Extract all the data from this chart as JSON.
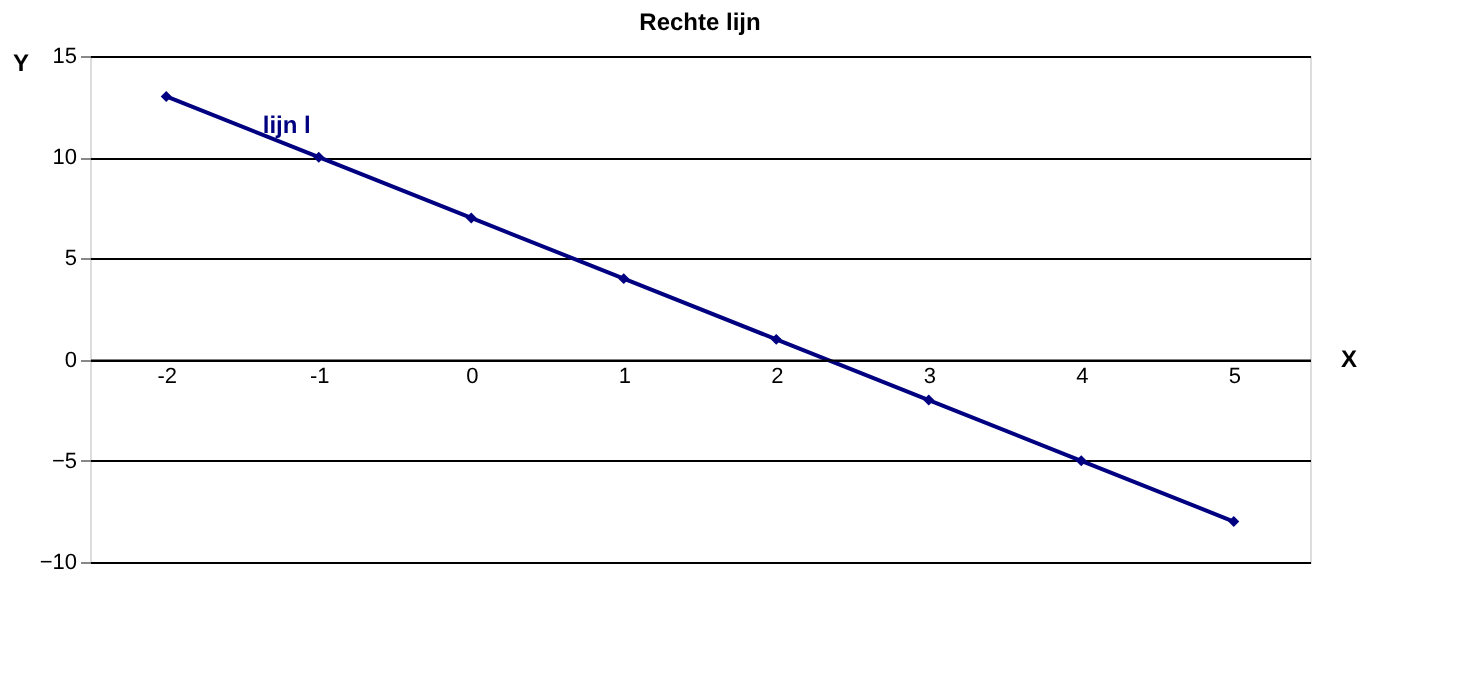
{
  "chart_data": {
    "type": "line",
    "title": "Rechte lijn",
    "xlabel": "X",
    "ylabel": "Y",
    "categories": [
      "-2",
      "-1",
      "0",
      "1",
      "2",
      "3",
      "4",
      "5"
    ],
    "series": [
      {
        "color": "#000080",
        "values": [
          13,
          10,
          7,
          4,
          1,
          -2,
          -5,
          -8
        ]
      }
    ],
    "ylim": [
      -10,
      15
    ],
    "yticks": [
      -10,
      -5,
      0,
      5,
      10,
      15
    ],
    "grid": "y",
    "marker": "diamond",
    "annotations": [
      {
        "text": "lijn l",
        "x": "-1",
        "y": 10
      }
    ]
  }
}
